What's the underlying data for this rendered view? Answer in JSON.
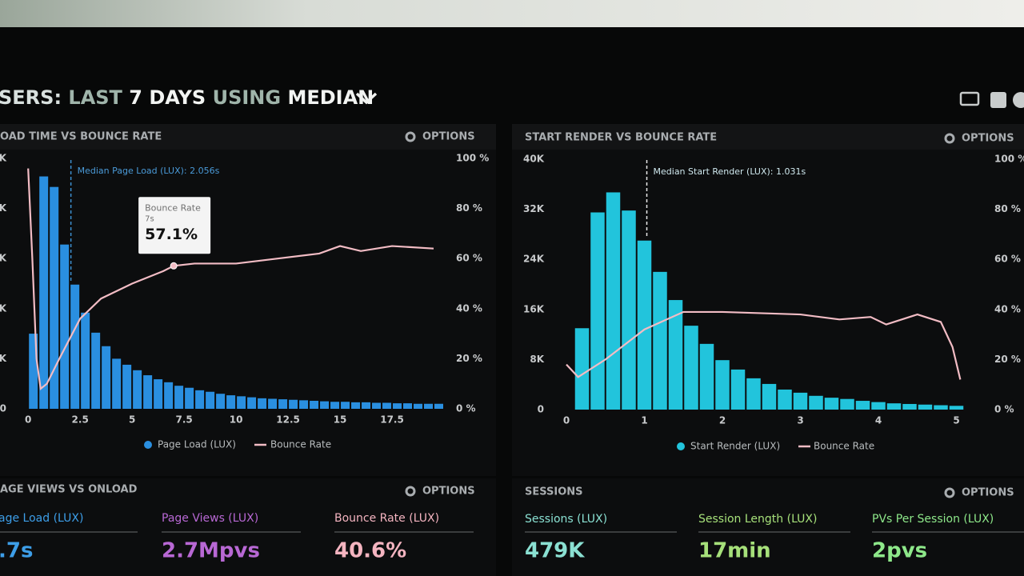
{
  "header": {
    "title_parts": [
      "SERS:",
      "LAST",
      "7 DAYS",
      "USING",
      "MEDIAN"
    ]
  },
  "chart_data": [
    {
      "type": "histogram",
      "title": "OAD TIME VS BOUNCE RATE",
      "options": "OPTIONS",
      "bins": [
        0,
        0.5,
        1,
        1.5,
        2,
        2.5,
        3,
        3.5,
        4,
        4.5,
        5,
        5.5,
        6,
        6.5,
        7,
        7.5,
        8,
        8.5,
        9,
        9.5,
        10,
        10.5,
        11,
        11.5,
        12,
        12.5,
        13,
        13.5,
        14,
        14.5,
        15,
        15.5,
        16,
        16.5,
        17,
        17.5,
        18,
        18.5,
        19,
        19.5,
        20
      ],
      "series": [
        {
          "name": "Page Load (LUX)",
          "color": "#2a8fe0",
          "values": [
            1.5,
            4.64,
            4.43,
            3.28,
            2.48,
            1.92,
            1.52,
            1.25,
            1.0,
            0.88,
            0.77,
            0.67,
            0.59,
            0.53,
            0.46,
            0.42,
            0.37,
            0.34,
            0.3,
            0.27,
            0.25,
            0.23,
            0.21,
            0.2,
            0.19,
            0.18,
            0.17,
            0.16,
            0.15,
            0.14,
            0.14,
            0.13,
            0.13,
            0.12,
            0.12,
            0.11,
            0.11,
            0.1,
            0.1,
            0.1
          ]
        },
        {
          "name": "Bounce Rate",
          "color": "#f2bcc4",
          "axis": "y2",
          "x": [
            0,
            0.2,
            0.4,
            0.6,
            0.9,
            1.5,
            2.5,
            3.5,
            5,
            6.5,
            7,
            8,
            10,
            12,
            14,
            15,
            16,
            17.5,
            19.5
          ],
          "values": [
            96,
            60,
            20,
            8,
            10,
            20,
            36,
            44,
            50,
            55,
            57.1,
            58,
            58,
            60,
            62,
            65,
            63,
            65,
            64
          ]
        }
      ],
      "xlim": [
        -0.2,
        20
      ],
      "xticks": [
        0,
        2.5,
        5,
        7.5,
        10,
        12.5,
        15,
        17.5
      ],
      "ylim": [
        0,
        5
      ],
      "yticks": [
        0,
        {
          "value": 1,
          "label": "K"
        },
        {
          "value": 2,
          "label": "K"
        },
        {
          "value": 3,
          "label": "K"
        },
        {
          "value": 4,
          "label": "K"
        },
        {
          "value": 5,
          "label": "K"
        }
      ],
      "y2lim": [
        0,
        100
      ],
      "y2ticks": [
        {
          "value": 0,
          "label": "0 %"
        },
        {
          "value": 20,
          "label": "20 %"
        },
        {
          "value": 40,
          "label": "40 %"
        },
        {
          "value": 60,
          "label": "60 %"
        },
        {
          "value": 80,
          "label": "80 %"
        },
        {
          "value": 100,
          "label": "100 %"
        }
      ],
      "median": {
        "label": "Median Page Load (LUX): 2.056s",
        "value": 2.056
      },
      "tooltip": {
        "title": "Bounce Rate",
        "x_label": "7s",
        "x": 7,
        "value": 57.1,
        "value_label": "57.1%"
      }
    },
    {
      "type": "histogram",
      "title": "START RENDER VS BOUNCE RATE",
      "options": "OPTIONS",
      "bins": [
        0.1,
        0.3,
        0.5,
        0.7,
        0.9,
        1.1,
        1.3,
        1.5,
        1.7,
        1.9,
        2.1,
        2.3,
        2.5,
        2.7,
        2.9,
        3.1,
        3.3,
        3.5,
        3.7,
        3.9,
        4.1,
        4.3,
        4.5,
        4.7,
        4.9,
        5.1
      ],
      "series": [
        {
          "name": "Start Render (LUX)",
          "color": "#22c4dc",
          "values": [
            13000,
            31500,
            34700,
            31800,
            27000,
            22000,
            17500,
            13400,
            10500,
            7900,
            6400,
            5000,
            4100,
            3200,
            2700,
            2200,
            1900,
            1700,
            1400,
            1200,
            1000,
            900,
            800,
            700,
            600
          ]
        },
        {
          "name": "Bounce Rate",
          "color": "#f2bcc4",
          "axis": "y2",
          "x": [
            0,
            0.15,
            0.5,
            1,
            1.5,
            2,
            3,
            3.5,
            3.9,
            4.1,
            4.5,
            4.8,
            4.95,
            5.05
          ],
          "values": [
            18,
            13,
            20,
            32,
            39,
            39,
            38,
            36,
            37,
            34,
            38,
            35,
            25,
            12
          ]
        }
      ],
      "xlim": [
        0,
        5.2
      ],
      "xticks": [
        0,
        1,
        2,
        3,
        4,
        5
      ],
      "ylim": [
        0,
        40000
      ],
      "yticks": [
        0,
        {
          "value": 8000,
          "label": "8K"
        },
        {
          "value": 16000,
          "label": "16K"
        },
        {
          "value": 24000,
          "label": "24K"
        },
        {
          "value": 32000,
          "label": "32K"
        },
        {
          "value": 40000,
          "label": "40K"
        }
      ],
      "y2lim": [
        0,
        100
      ],
      "y2ticks": [
        {
          "value": 0,
          "label": "0 %"
        },
        {
          "value": 20,
          "label": "20 %"
        },
        {
          "value": 40,
          "label": "40 %"
        },
        {
          "value": 60,
          "label": "60 %"
        },
        {
          "value": 80,
          "label": "80 %"
        },
        {
          "value": 100,
          "label": "100 %"
        }
      ],
      "median": {
        "label": "Median Start Render (LUX): 1.031s",
        "value": 1.031
      }
    }
  ],
  "panels": [
    {
      "title": "AGE VIEWS VS ONLOAD",
      "options": "OPTIONS",
      "metrics": [
        {
          "label": "age Load (LUX)",
          "value": ".7s",
          "color": "#3d9ee8"
        },
        {
          "label": "Page Views (LUX)",
          "value": "2.7Mpvs",
          "color": "#b868d4"
        },
        {
          "label": "Bounce Rate (LUX)",
          "value": "40.6%",
          "color": "#f4b4c0"
        }
      ]
    },
    {
      "title": "SESSIONS",
      "options": "OPTIONS",
      "metrics": [
        {
          "label": "Sessions (LUX)",
          "value": "479K",
          "color": "#8ae0d2"
        },
        {
          "label": "Session Length (LUX)",
          "value": "17min",
          "color": "#a6e07a"
        },
        {
          "label": "PVs Per Session (LUX)",
          "value": "2pvs",
          "color": "#8ee88a"
        }
      ]
    }
  ]
}
